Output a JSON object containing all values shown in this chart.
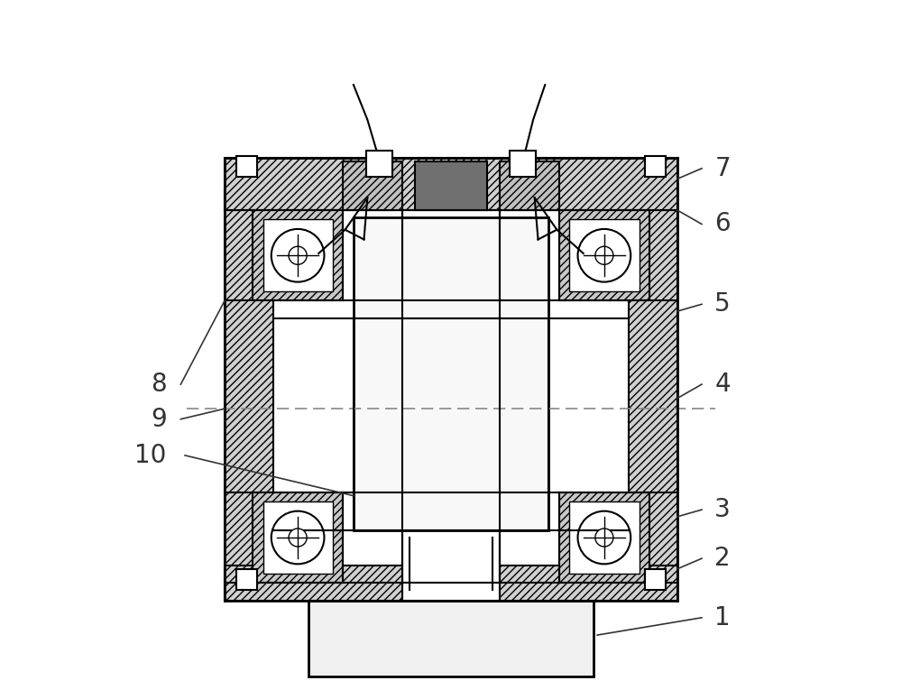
{
  "bg_color": "#ffffff",
  "line_color": "#000000",
  "hatch_color": "#000000",
  "hatch_pattern": "////",
  "dashed_line_color": "#999999",
  "label_color": "#333333",
  "fig_width": 10.0,
  "fig_height": 7.75,
  "label_fontsize": 20
}
